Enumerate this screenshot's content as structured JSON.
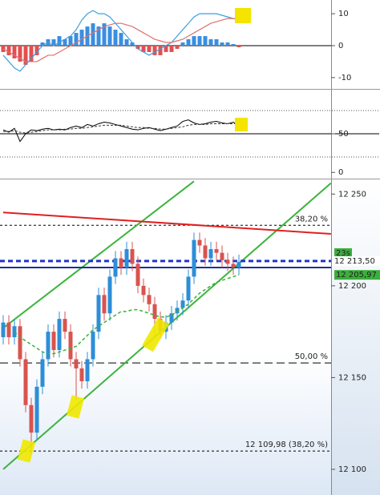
{
  "chart_data": [
    {
      "type": "macd",
      "ylim": [
        -13.3,
        14.3
      ],
      "yticks": [
        10,
        0,
        -10
      ],
      "histogram": [
        -2,
        -3,
        -4,
        -5,
        -6,
        -5,
        -3,
        1,
        2,
        2,
        3,
        2,
        3,
        4,
        5,
        6,
        7,
        6,
        7,
        6,
        5,
        4,
        2,
        1,
        -1,
        -2,
        -2,
        -3,
        -3,
        -2,
        -2,
        -1,
        1,
        2,
        3,
        3,
        3,
        2,
        2,
        1,
        1,
        0.5,
        -0.5
      ],
      "colors": {
        "positive": "#3a8ee0",
        "negative": "#e05050"
      },
      "series": [
        {
          "color": "#3aa0e0",
          "values": [
            -3,
            -5,
            -7,
            -8,
            -6,
            -4,
            -2,
            0,
            1,
            0,
            1,
            2,
            3,
            5,
            8,
            10,
            11,
            10,
            10,
            9,
            7,
            5,
            3,
            1,
            -1,
            -2,
            -3,
            -2,
            -1,
            0,
            1,
            3,
            5,
            7,
            9,
            10,
            10,
            10,
            10,
            9.5,
            9,
            8.5,
            8
          ]
        },
        {
          "color": "#e07070",
          "values": [
            -1,
            -2,
            -3,
            -4,
            -5,
            -5,
            -5,
            -4,
            -3,
            -3,
            -2,
            -1,
            0,
            1,
            2,
            3,
            4,
            5,
            6,
            6.5,
            7,
            7,
            6.5,
            6,
            5,
            4,
            3,
            2,
            1.5,
            1,
            1,
            1.5,
            2,
            3,
            4,
            5,
            6,
            7,
            7.5,
            8,
            8.5,
            8.5,
            8.5
          ]
        }
      ]
    },
    {
      "type": "oscillator",
      "ylim": [
        -7,
        107
      ],
      "yticks": [
        50,
        0
      ],
      "levels": [
        80,
        20
      ],
      "series": [
        {
          "color": "#000000",
          "dashed": false,
          "values": [
            55,
            52,
            57,
            40,
            50,
            55,
            54,
            56,
            57,
            55,
            56,
            55,
            58,
            60,
            58,
            62,
            60,
            63,
            65,
            64,
            62,
            60,
            58,
            56,
            55,
            57,
            58,
            56,
            54,
            56,
            58,
            60,
            66,
            68,
            64,
            62,
            63,
            65,
            66,
            64,
            63,
            65,
            60
          ]
        },
        {
          "color": "#333333",
          "dashed": true,
          "values": [
            53,
            53,
            54,
            52,
            51,
            52,
            53,
            54,
            55,
            55,
            55,
            56,
            56,
            57,
            57,
            58,
            59,
            60,
            61,
            61,
            61,
            61,
            60,
            59,
            58,
            58,
            57,
            57,
            56,
            56,
            57,
            58,
            59,
            61,
            62,
            62,
            62,
            63,
            63,
            63,
            63,
            63,
            63
          ]
        }
      ]
    },
    {
      "type": "candlestick",
      "ylim": [
        12086,
        12258
      ],
      "yticks": [
        {
          "value": 12250,
          "label": "12 250"
        },
        {
          "value": 12200,
          "label": "12 200"
        },
        {
          "value": 12150,
          "label": "12 150"
        },
        {
          "value": 12100,
          "label": "12 100"
        }
      ],
      "colors": {
        "up": "#2d8ed8",
        "down": "#d9534f"
      },
      "open": [
        12172,
        12180,
        12172,
        12178,
        12160,
        12135,
        12120,
        12145,
        12160,
        12175,
        12165,
        12182,
        12175,
        12160,
        12155,
        12148,
        12160,
        12175,
        12195,
        12185,
        12205,
        12215,
        12210,
        12220,
        12212,
        12200,
        12195,
        12190,
        12182,
        12175,
        12180,
        12185,
        12188,
        12192,
        12205,
        12225,
        12222,
        12215,
        12220,
        12218,
        12214,
        12212,
        12210
      ],
      "high": [
        12184,
        12184,
        12182,
        12182,
        12164,
        12139,
        12149,
        12164,
        12179,
        12179,
        12186,
        12186,
        12179,
        12164,
        12159,
        12164,
        12179,
        12199,
        12199,
        12209,
        12219,
        12219,
        12224,
        12224,
        12216,
        12204,
        12199,
        12194,
        12186,
        12184,
        12189,
        12192,
        12196,
        12209,
        12229,
        12229,
        12226,
        12224,
        12224,
        12222,
        12218,
        12216,
        12217
      ],
      "low": [
        12168,
        12168,
        12168,
        12156,
        12131,
        12108,
        12116,
        12141,
        12156,
        12161,
        12161,
        12171,
        12156,
        12138,
        12144,
        12144,
        12156,
        12171,
        12181,
        12181,
        12201,
        12206,
        12206,
        12208,
        12196,
        12191,
        12186,
        12172,
        12171,
        12171,
        12176,
        12181,
        12184,
        12188,
        12201,
        12218,
        12211,
        12211,
        12214,
        12210,
        12208,
        12206,
        12206
      ],
      "close": [
        12180,
        12172,
        12178,
        12160,
        12135,
        12120,
        12145,
        12160,
        12175,
        12165,
        12182,
        12175,
        12160,
        12155,
        12148,
        12160,
        12175,
        12195,
        12185,
        12205,
        12215,
        12210,
        12220,
        12212,
        12200,
        12195,
        12190,
        12182,
        12175,
        12180,
        12185,
        12188,
        12192,
        12205,
        12225,
        12222,
        12215,
        12220,
        12218,
        12214,
        12212,
        12210,
        12213
      ],
      "moving_average": {
        "color": "#3cae3c",
        "values": [
          null,
          null,
          12175,
          12172,
          12170,
          12168,
          12166,
          12164,
          12163,
          12163,
          12164,
          12165,
          12166,
          12167,
          12170,
          12173,
          12176,
          12178,
          12180,
          12182,
          12184,
          12186,
          12186,
          12187,
          12187,
          12186,
          12185,
          12184,
          12183,
          12183,
          12184,
          12186,
          12188,
          12190,
          12193,
          12196,
          12198,
          12200,
          12202,
          12203,
          12204,
          12205,
          12205.97
        ]
      },
      "trendlines": [
        {
          "color": "#3cb43c",
          "points": [
            [
              0,
              12177
            ],
            [
              34,
              12257
            ]
          ]
        },
        {
          "color": "#3cb43c",
          "points": [
            [
              0,
              12100
            ],
            [
              58.4,
              12256
            ]
          ]
        },
        {
          "color": "#e02020",
          "points": [
            [
              0,
              12240
            ],
            [
              58.4,
              12228.3
            ]
          ]
        }
      ],
      "levels": [
        {
          "value": 12233,
          "label": "38,20 %",
          "dash": "3,3"
        },
        {
          "value": 12158,
          "label": "50,00 %",
          "dash": "10,5"
        },
        {
          "value": 12109.98,
          "label": "12 109,98 (38,20 %)",
          "dash": "3,3"
        }
      ],
      "price_lines": [
        {
          "value": 12213.5,
          "label": "12 213,50",
          "color": "#2233cc",
          "dashed": true
        },
        {
          "value": 12210,
          "color": "#1a2fa0",
          "dashed": false
        }
      ],
      "ma_label": {
        "value": 12205.97,
        "label": "12 205,97"
      },
      "countdown": "23s"
    }
  ]
}
